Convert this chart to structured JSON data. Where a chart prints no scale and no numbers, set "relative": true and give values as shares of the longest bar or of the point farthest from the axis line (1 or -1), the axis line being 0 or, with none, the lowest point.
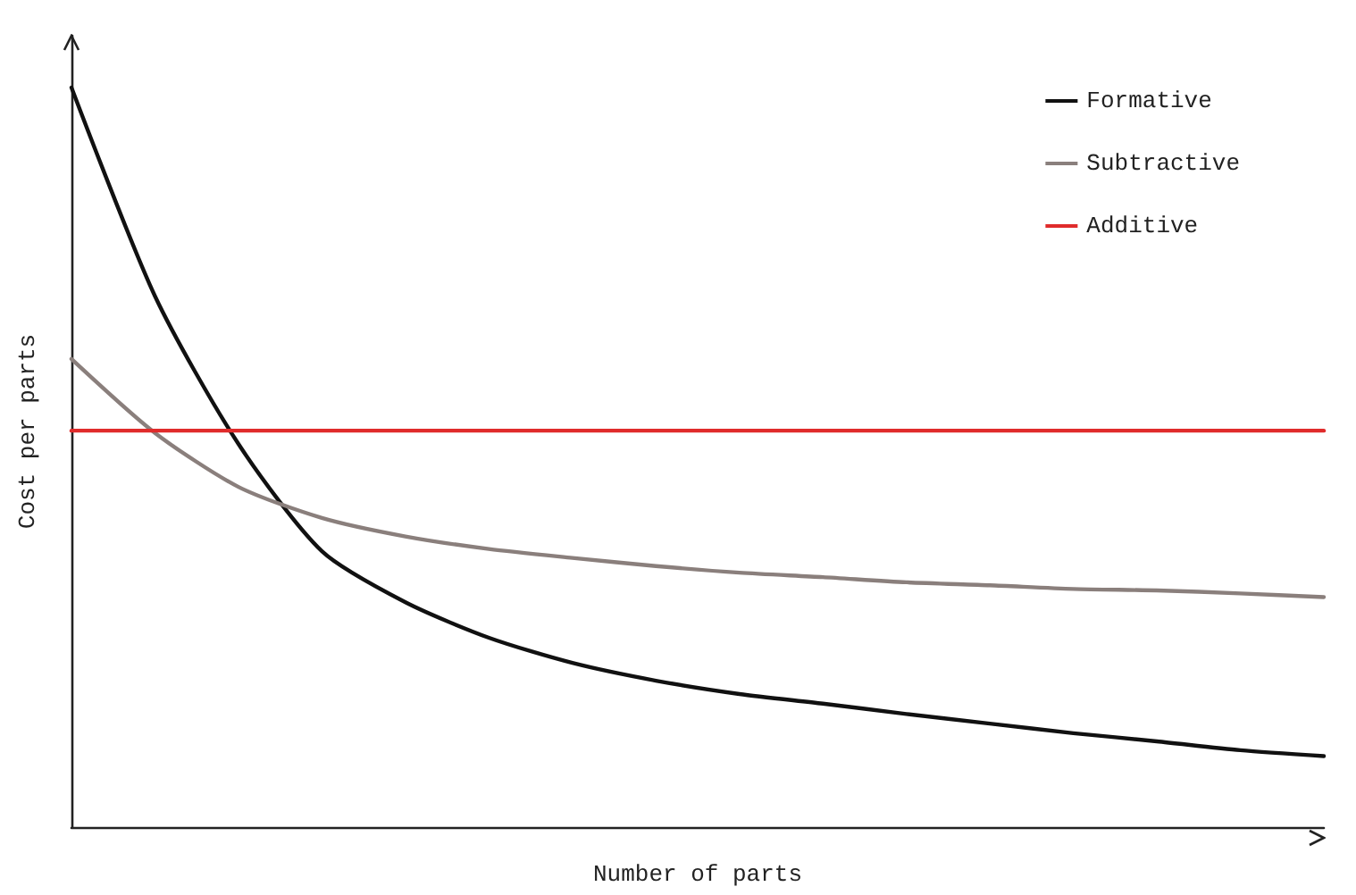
{
  "chart_data": {
    "type": "line",
    "xlabel": "Number of parts",
    "ylabel": "Cost per parts",
    "relative": true,
    "legend": "top right",
    "marker": "none",
    "line_style": "solid",
    "categories": [
      null,
      null,
      null,
      null,
      null,
      null,
      null,
      null,
      null,
      null,
      null,
      null,
      null,
      null,
      null,
      null
    ],
    "series": [
      {
        "name": "Formative",
        "color": "#111111",
        "values": [
          1,
          0.718,
          0.518,
          0.373,
          0.304,
          0.256,
          0.222,
          0.198,
          0.18,
          0.167,
          0.153,
          0.14,
          0.127,
          0.116,
          0.104,
          0.096
        ]
      },
      {
        "name": "Subtractive",
        "color": "#8a7f7c",
        "values": [
          0.633,
          0.533,
          0.46,
          0.418,
          0.393,
          0.376,
          0.364,
          0.353,
          0.344,
          0.338,
          0.331,
          0.327,
          0.322,
          0.32,
          0.316,
          0.311
        ]
      },
      {
        "name": "Additive",
        "color": "#e02b2b",
        "values": [
          0.536,
          0.536,
          0.536,
          0.536,
          0.536,
          0.536,
          0.536,
          0.536,
          0.536,
          0.536,
          0.536,
          0.536,
          0.536,
          0.536,
          0.536,
          0.536
        ]
      }
    ]
  }
}
